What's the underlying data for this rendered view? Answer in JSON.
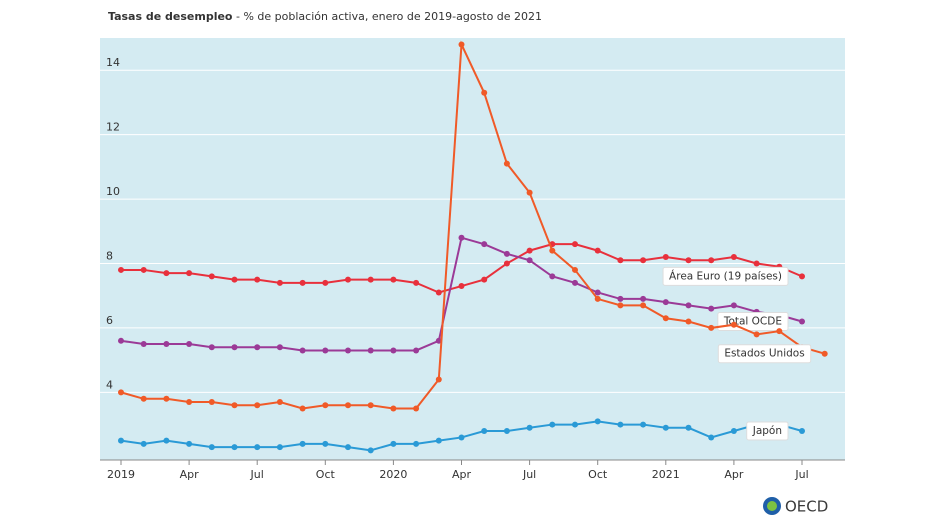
{
  "chart_data": {
    "type": "line",
    "title": "Tasas de desempleo",
    "subtitle": " - % de población activa, enero de 2019-agosto de 2021",
    "logo": "OECD",
    "categories": [
      "2019",
      null,
      null,
      "Apr",
      null,
      null,
      "Jul",
      null,
      null,
      "Oct",
      null,
      null,
      "2020",
      null,
      null,
      "Apr",
      null,
      null,
      "Jul",
      null,
      null,
      "Oct",
      null,
      null,
      "2021",
      null,
      null,
      "Apr",
      null,
      null,
      "Jul",
      null
    ],
    "series": [
      {
        "name": "Área Euro (19 países)",
        "color": "#e8303c",
        "values": [
          7.8,
          7.8,
          7.7,
          7.7,
          7.6,
          7.5,
          7.5,
          7.4,
          7.4,
          7.4,
          7.5,
          7.5,
          7.5,
          7.4,
          7.1,
          7.3,
          7.5,
          8.0,
          8.4,
          8.6,
          8.6,
          8.4,
          8.1,
          8.1,
          8.2,
          8.1,
          8.1,
          8.2,
          8.0,
          7.9,
          7.6,
          null
        ]
      },
      {
        "name": "Total OCDE",
        "color": "#9b3a97",
        "values": [
          5.6,
          5.5,
          5.5,
          5.5,
          5.4,
          5.4,
          5.4,
          5.4,
          5.3,
          5.3,
          5.3,
          5.3,
          5.3,
          5.3,
          5.6,
          8.8,
          8.6,
          8.3,
          8.1,
          7.6,
          7.4,
          7.1,
          6.9,
          6.9,
          6.8,
          6.7,
          6.6,
          6.7,
          6.5,
          6.4,
          6.2,
          null
        ]
      },
      {
        "name": "Estados Unidos",
        "color": "#f05a28",
        "values": [
          4.0,
          3.8,
          3.8,
          3.7,
          3.7,
          3.6,
          3.6,
          3.7,
          3.5,
          3.6,
          3.6,
          3.6,
          3.5,
          3.5,
          4.4,
          14.8,
          13.3,
          11.1,
          10.2,
          8.4,
          7.8,
          6.9,
          6.7,
          6.7,
          6.3,
          6.2,
          6.0,
          6.1,
          5.8,
          5.9,
          5.4,
          5.2
        ]
      },
      {
        "name": "Japón",
        "color": "#2a9ad6",
        "values": [
          2.5,
          2.4,
          2.5,
          2.4,
          2.3,
          2.3,
          2.3,
          2.3,
          2.4,
          2.4,
          2.3,
          2.2,
          2.4,
          2.4,
          2.5,
          2.6,
          2.8,
          2.8,
          2.9,
          3.0,
          3.0,
          3.1,
          3.0,
          3.0,
          2.9,
          2.9,
          2.6,
          2.8,
          3.0,
          3.0,
          2.8,
          null
        ]
      }
    ],
    "ylim": [
      1.9,
      15
    ],
    "yticks": [
      4,
      6,
      8,
      10,
      12,
      14
    ],
    "grid": true
  }
}
